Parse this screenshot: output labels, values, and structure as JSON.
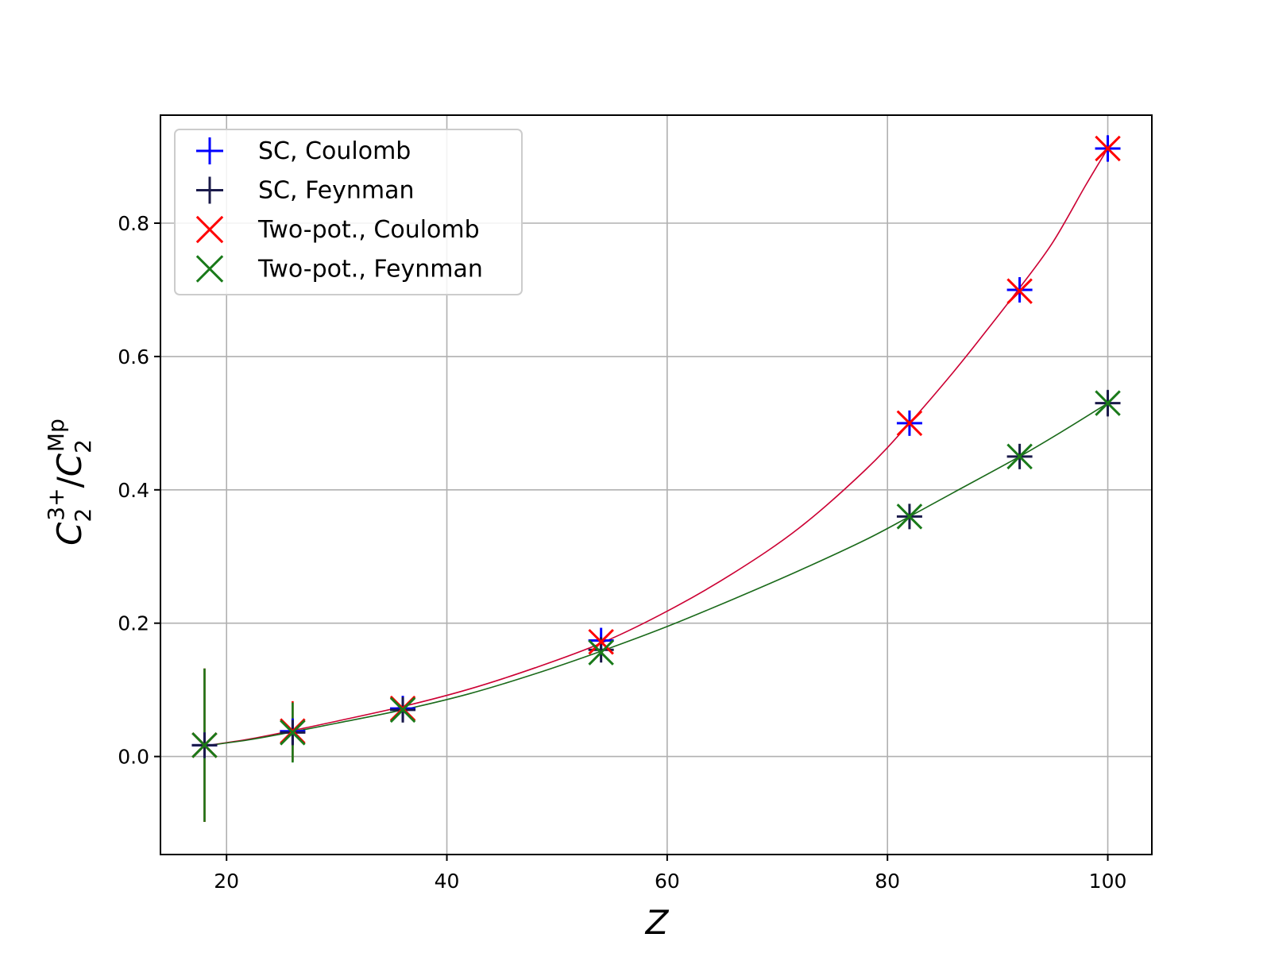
{
  "chart_data": {
    "type": "scatter",
    "xlabel": "Z",
    "ylabel": {
      "base": "C",
      "sub1": "2",
      "sup1": "3+",
      "slash": "/",
      "base2": "C",
      "sub2": "2",
      "sup2": "Mp"
    },
    "xlim": [
      14,
      104
    ],
    "ylim": [
      -0.147,
      0.962
    ],
    "xticks": [
      20,
      40,
      60,
      80,
      100
    ],
    "yticks": [
      0.0,
      0.2,
      0.4,
      0.6,
      0.8
    ],
    "xtick_labels": [
      "20",
      "40",
      "60",
      "80",
      "100"
    ],
    "ytick_labels": [
      "0.0",
      "0.2",
      "0.4",
      "0.6",
      "0.8"
    ],
    "grid": true,
    "legend_position": "top-left",
    "series": [
      {
        "name": "SC, Coulomb",
        "marker": "plus",
        "color": "#0000ff",
        "x": [
          18,
          26,
          36,
          54,
          82,
          92,
          100
        ],
        "y": [
          0.017,
          0.038,
          0.072,
          0.174,
          0.5,
          0.7,
          0.912
        ],
        "yerr": [
          0.002,
          0.002,
          0.002,
          0.012,
          0.015,
          0.015,
          0.02
        ]
      },
      {
        "name": "SC, Feynman",
        "marker": "plus",
        "color": "#1a1a4a",
        "x": [
          18,
          26,
          36,
          54,
          82,
          92,
          100
        ],
        "y": [
          0.017,
          0.036,
          0.07,
          0.16,
          0.36,
          0.45,
          0.53
        ],
        "yerr": [
          0.002,
          0.002,
          0.002,
          0.012,
          0.015,
          0.015,
          0.02
        ]
      },
      {
        "name": "Two-pot., Coulomb",
        "marker": "x",
        "color": "#ff0000",
        "x": [
          18,
          26,
          36,
          54,
          82,
          92,
          100
        ],
        "y": [
          0.017,
          0.038,
          0.072,
          0.172,
          0.5,
          0.698,
          0.912
        ],
        "yerr": [
          0.115,
          0.045,
          0.008,
          0.003,
          0.003,
          0.003,
          0.003
        ]
      },
      {
        "name": "Two-pot., Feynman",
        "marker": "x",
        "color": "#1a7a1a",
        "x": [
          18,
          26,
          36,
          54,
          82,
          92,
          100
        ],
        "y": [
          0.017,
          0.036,
          0.07,
          0.156,
          0.36,
          0.45,
          0.53
        ],
        "yerr": [
          0.115,
          0.045,
          0.008,
          0.003,
          0.003,
          0.003,
          0.003
        ]
      }
    ],
    "fit_curves": [
      {
        "color": "#cc0033",
        "x": [
          18,
          22,
          26,
          30,
          36,
          42,
          48,
          54,
          60,
          66,
          72,
          78,
          82,
          86,
          89,
          92,
          95,
          98,
          100
        ],
        "y": [
          0.016,
          0.026,
          0.039,
          0.053,
          0.075,
          0.101,
          0.133,
          0.17,
          0.218,
          0.275,
          0.343,
          0.43,
          0.5,
          0.577,
          0.639,
          0.703,
          0.771,
          0.857,
          0.912
        ]
      },
      {
        "color": "#1a6a1a",
        "x": [
          18,
          22,
          26,
          30,
          36,
          42,
          48,
          54,
          60,
          66,
          72,
          78,
          82,
          86,
          92,
          96,
          100
        ],
        "y": [
          0.016,
          0.025,
          0.037,
          0.05,
          0.07,
          0.094,
          0.124,
          0.158,
          0.195,
          0.236,
          0.279,
          0.325,
          0.36,
          0.396,
          0.45,
          0.489,
          0.53
        ]
      }
    ]
  }
}
